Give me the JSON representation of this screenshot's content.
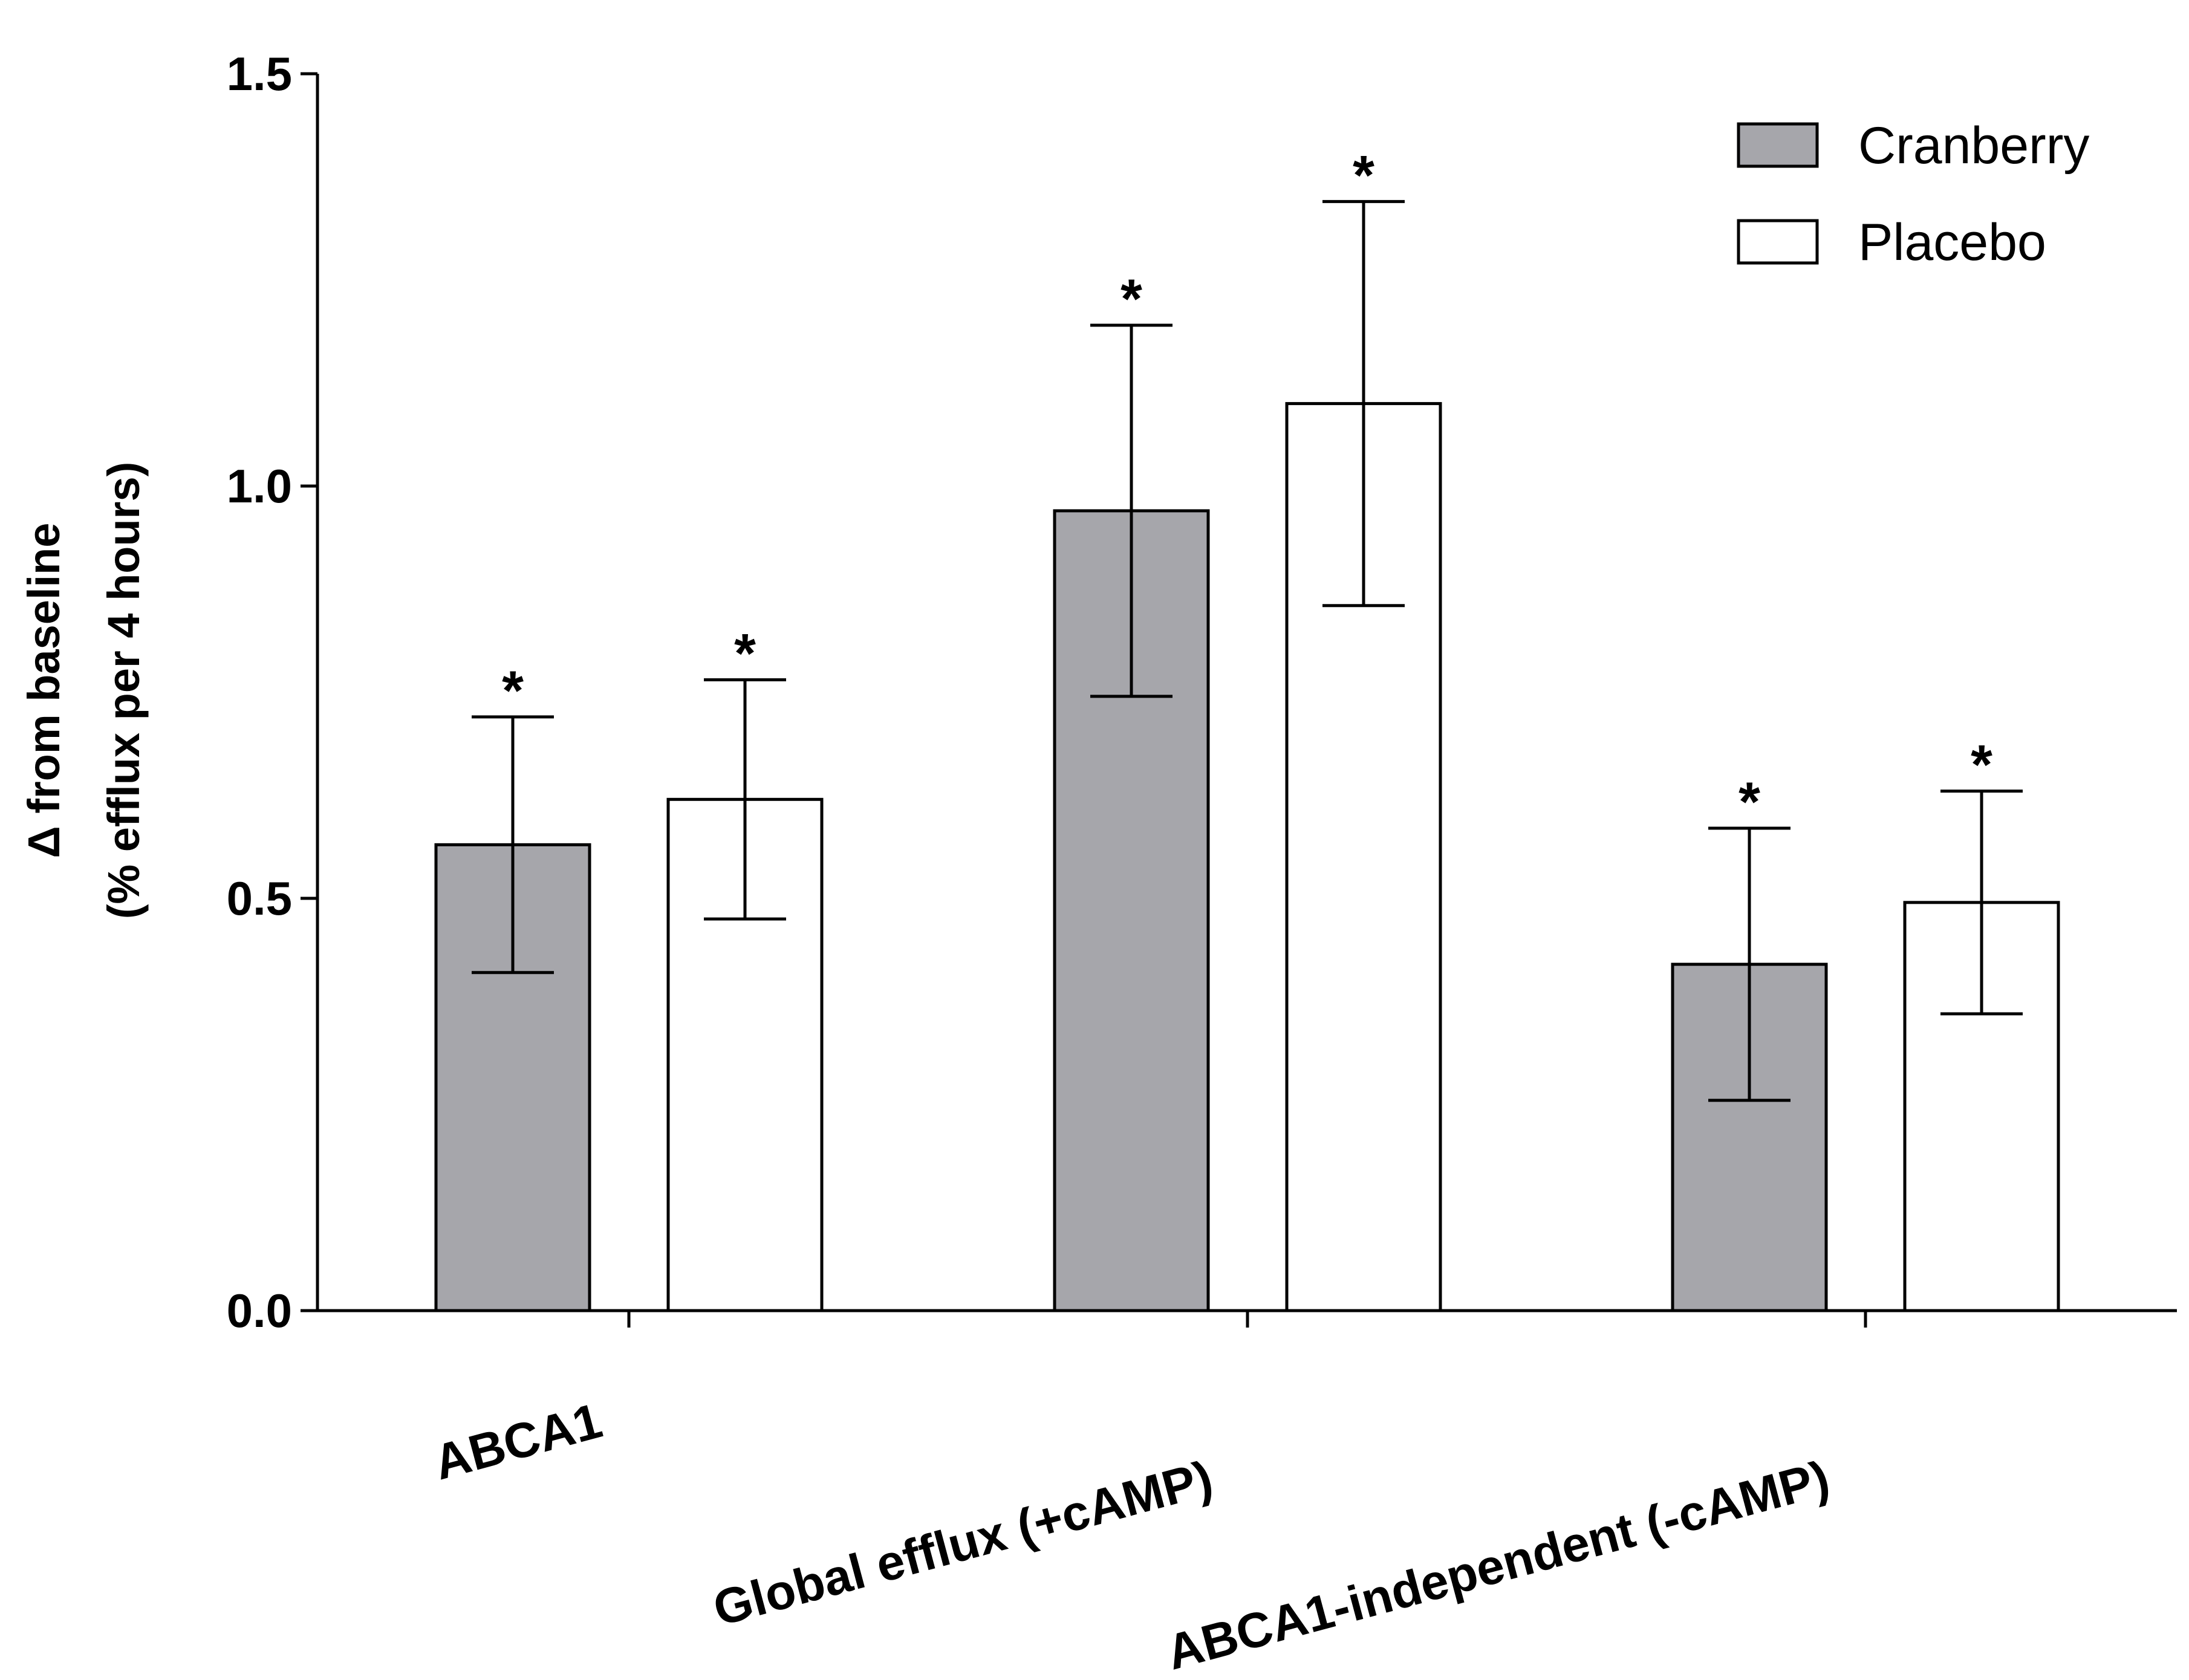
{
  "chart_data": {
    "type": "bar",
    "title": "",
    "xlabel": "",
    "ylabel_line1": "Δ from baseline",
    "ylabel_line2": "(% efflux per 4 hours)",
    "ylim": [
      0,
      1.5
    ],
    "yticks": [
      0.0,
      0.5,
      1.0,
      1.5
    ],
    "ytick_labels": [
      "0.0",
      "0.5",
      "1.0",
      "1.5"
    ],
    "categories": [
      "ABCA1",
      "Global efflux (+cAMP)",
      "ABCA1-independent (-cAMP)"
    ],
    "series": [
      {
        "name": "Cranberry",
        "color": "#a6a6ab",
        "values": [
          0.565,
          0.97,
          0.42
        ],
        "error": [
          0.155,
          0.225,
          0.165
        ],
        "significance": [
          "*",
          "*",
          "*"
        ]
      },
      {
        "name": "Placebo",
        "color": "#ffffff",
        "values": [
          0.62,
          1.1,
          0.495
        ],
        "error": [
          0.145,
          0.245,
          0.135
        ],
        "significance": [
          "*",
          "*",
          "*"
        ]
      }
    ],
    "legend_position": "top-right",
    "grid": false
  }
}
